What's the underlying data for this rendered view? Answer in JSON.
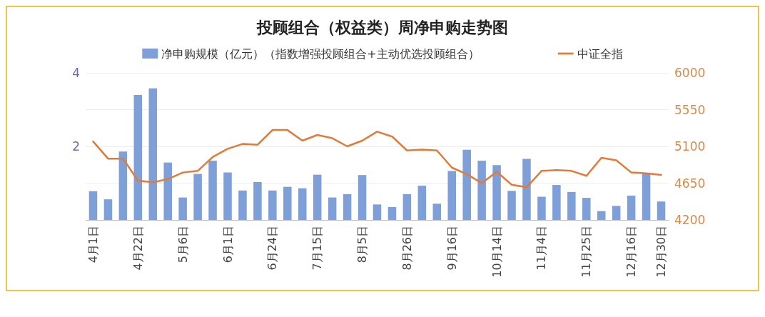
{
  "chart_data": {
    "type": "bar",
    "title": "投顾组合（权益类）周净申购走势图",
    "categories": [
      "4月1日",
      null,
      null,
      "4月22日",
      null,
      null,
      "5月6日",
      null,
      null,
      "6月1日",
      null,
      null,
      "6月24日",
      null,
      null,
      "7月15日",
      null,
      null,
      "8月5日",
      null,
      null,
      "8月26日",
      null,
      null,
      "9月16日",
      null,
      null,
      "10月14日",
      null,
      null,
      "11月4日",
      null,
      null,
      "11月25日",
      null,
      null,
      "12月16日",
      null,
      "12月30日"
    ],
    "series": [
      {
        "name": "净申购规模（亿元）（指数增强投顾组合+主动优选投顾组合）",
        "color": "#7f9fd8",
        "values": [
          0.78,
          0.56,
          1.86,
          3.4,
          3.58,
          1.56,
          0.61,
          1.25,
          1.61,
          1.29,
          0.8,
          1.03,
          0.8,
          0.9,
          0.86,
          1.23,
          0.61,
          0.7,
          1.22,
          0.42,
          0.35,
          0.7,
          0.93,
          0.44,
          1.33,
          1.91,
          1.61,
          1.49,
          0.79,
          1.66,
          0.63,
          0.95,
          0.76,
          0.6,
          0.24,
          0.38,
          0.66,
          1.26,
          0.5
        ]
      },
      {
        "name": "中证全指",
        "type": "line",
        "axis": "y2",
        "color": "#e07b39",
        "values": [
          5160,
          4950,
          4950,
          4680,
          4660,
          4700,
          4780,
          4800,
          4970,
          5070,
          5130,
          5120,
          5300,
          5300,
          5170,
          5240,
          5200,
          5100,
          5170,
          5280,
          5220,
          5050,
          5060,
          5050,
          4840,
          4760,
          4650,
          4790,
          4630,
          4600,
          4800,
          4810,
          4800,
          4740,
          4960,
          4930,
          4780,
          4770,
          4750
        ]
      }
    ],
    "ylim": [
      0,
      4
    ],
    "yticks": [
      {
        "value": 0,
        "label": null
      },
      {
        "value": 1,
        "label": null
      },
      2,
      {
        "value": 3,
        "label": null
      },
      4
    ],
    "y2lim": [
      4200,
      6000
    ],
    "y2ticks": [
      4200,
      4650,
      5100,
      5550,
      6000
    ],
    "grid": "y",
    "legend": "top",
    "marker": "none",
    "line_style": "solid"
  }
}
